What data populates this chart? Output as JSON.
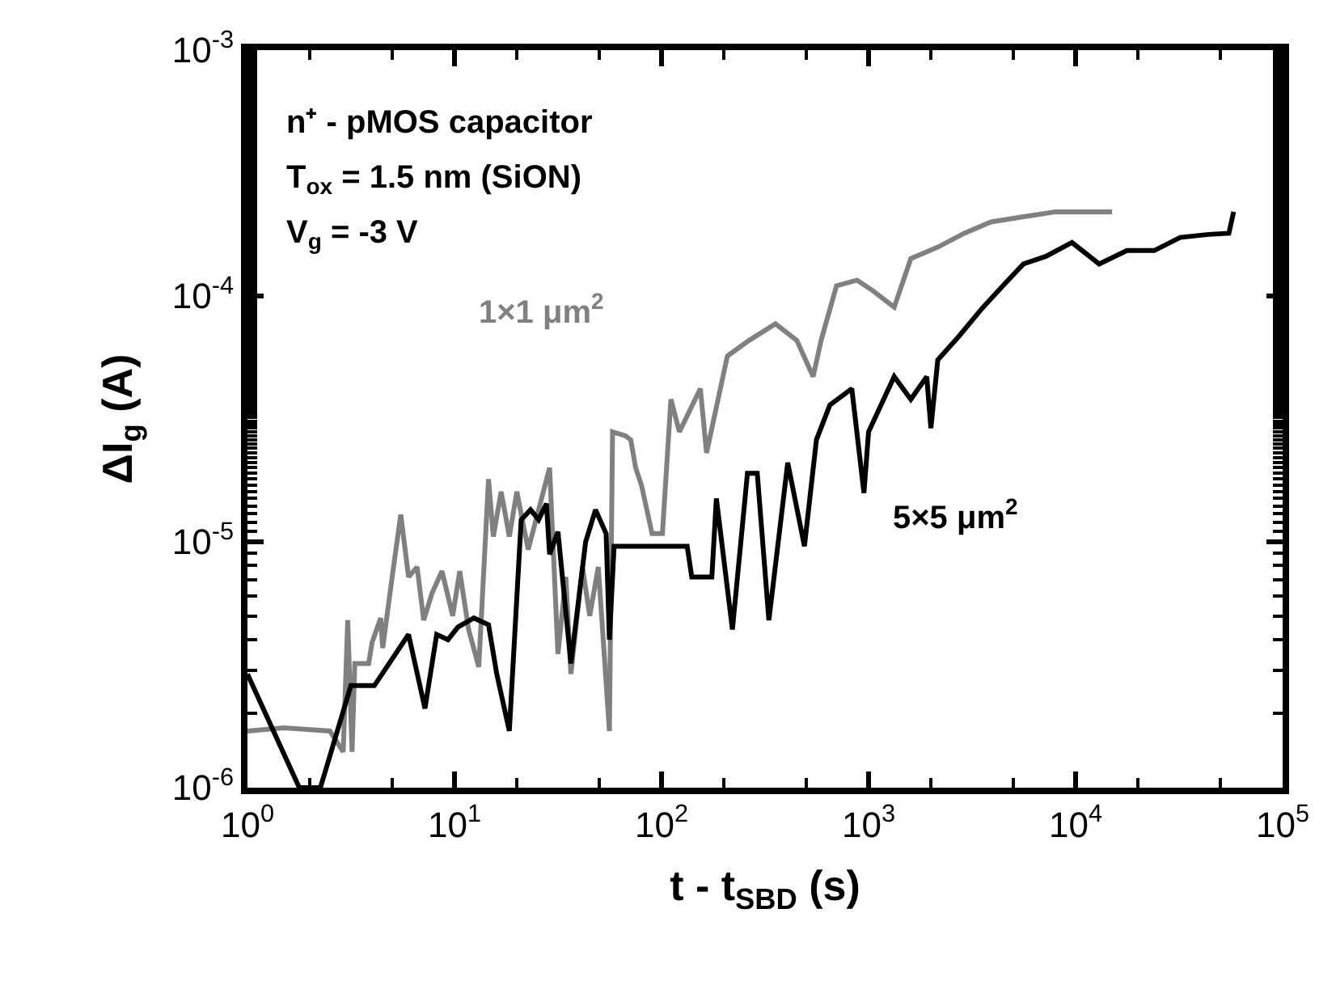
{
  "chart_data": {
    "type": "line",
    "xlabel": "t - t$_{SBD}$ (s)",
    "ylabel": "ΔI$_{g}$ (A)",
    "log": "xy",
    "grid": false,
    "legend": false,
    "marker": "none",
    "line_style": "solid",
    "xlim": [
      1,
      100000
    ],
    "ylim": [
      1e-06,
      0.001
    ],
    "xticks": [
      {
        "value": 1,
        "label": "10$^{0}$"
      },
      {
        "value": 10,
        "label": "10$^{1}$"
      },
      {
        "value": 100,
        "label": "10$^{2}$"
      },
      {
        "value": 1000,
        "label": "10$^{3}$"
      },
      {
        "value": 10000,
        "label": "10$^{4}$"
      },
      {
        "value": 100000,
        "label": "10$^{5}$"
      }
    ],
    "yticks": [
      {
        "value": 1e-06,
        "label": "10$^{-6}$"
      },
      {
        "value": 1e-05,
        "label": "10$^{-5}$"
      },
      {
        "value": 0.0001,
        "label": "10$^{-4}$"
      },
      {
        "value": 0.001,
        "label": "10$^{-3}$"
      }
    ],
    "annotations": [
      "n⁺ - pMOS capacitor",
      "T$_{ox}$ = 1.5 nm (SiON)",
      "V$_{g}$ = -3 V"
    ],
    "series": [
      {
        "name": "1×1 μm$^{2}$",
        "color": "#808080",
        "x": [
          1,
          1.5,
          2.5,
          2.9,
          3.05,
          3.2,
          3.3,
          3.85,
          4.0,
          4.4,
          4.5,
          5.0,
          5.5,
          6.0,
          6.6,
          7.1,
          7.8,
          8.7,
          9.8,
          10.6,
          11.7,
          13.1,
          14.6,
          15.4,
          16.8,
          18.4,
          20,
          22.7,
          28.8,
          31.6,
          34.5,
          36.5,
          41.5,
          45,
          49.5,
          56,
          58,
          67,
          71,
          75,
          80,
          90,
          101,
          111,
          122,
          154,
          165,
          208,
          265,
          355,
          450,
          540,
          590,
          700,
          880,
          1050,
          1330,
          1600,
          2160,
          2900,
          3900,
          5600,
          8000,
          11000,
          15000
        ],
        "values": [
          1.7e-06,
          1.75e-06,
          1.7e-06,
          1.4e-06,
          4.8e-06,
          1.4e-06,
          3.2e-06,
          3.2e-06,
          3.9e-06,
          4.9e-06,
          3.7e-06,
          7.2e-06,
          1.29e-05,
          7.2e-06,
          7.9e-06,
          4.8e-06,
          6.2e-06,
          7.6e-06,
          5e-06,
          7.6e-06,
          4.4e-06,
          3.1e-06,
          1.8e-05,
          1.05e-05,
          1.6e-05,
          1.05e-05,
          1.6e-05,
          9.3e-06,
          2e-05,
          3.5e-06,
          7.2e-06,
          2.9e-06,
          7.9e-06,
          5e-06,
          7.9e-06,
          1.7e-06,
          2.8e-05,
          2.7e-05,
          2.6e-05,
          2e-05,
          1.7e-05,
          1.08e-05,
          1.08e-05,
          3.8e-05,
          2.8e-05,
          4.2e-05,
          2.3e-05,
          5.7e-05,
          6.6e-05,
          7.7e-05,
          6.6e-05,
          4.7e-05,
          6.6e-05,
          0.00011,
          0.000116,
          0.000105,
          9e-05,
          0.000142,
          0.000158,
          0.00018,
          0.0002,
          0.00021,
          0.00022,
          0.00022,
          0.00022
        ]
      },
      {
        "name": "5×5 μm$^{2}$",
        "color": "#000000",
        "x": [
          1,
          1.78,
          2.25,
          3.16,
          4.1,
          6.0,
          7.2,
          8.2,
          9.3,
          10.4,
          12.4,
          14.6,
          16,
          18.4,
          21,
          23.3,
          25.5,
          27.8,
          28.8,
          31.6,
          36.5,
          43,
          48,
          54,
          56,
          59,
          133,
          140,
          175,
          184,
          220,
          260,
          290,
          330,
          407,
          490,
          560,
          650,
          830,
          950,
          1000,
          1330,
          1600,
          1910,
          2000,
          2160,
          2750,
          3530,
          4450,
          5600,
          7200,
          9600,
          13000,
          17700,
          24000,
          32000,
          44000,
          55000,
          58000
        ],
        "values": [
          2.9e-06,
          1e-06,
          1e-06,
          2.6e-06,
          2.6e-06,
          4.2e-06,
          2.1e-06,
          4.2e-06,
          4e-06,
          4.5e-06,
          4.9e-06,
          4.6e-06,
          2.9e-06,
          1.7e-06,
          1.23e-05,
          1.35e-05,
          1.23e-05,
          1.43e-05,
          8.9e-06,
          1.1e-05,
          3.2e-06,
          1e-05,
          1.35e-05,
          1.08e-05,
          4e-06,
          9.6e-06,
          9.6e-06,
          7.2e-06,
          7.2e-06,
          1.5e-05,
          4.4e-06,
          1.9e-05,
          1.9e-05,
          4.8e-06,
          2.1e-05,
          9.6e-06,
          2.6e-05,
          3.6e-05,
          4.2e-05,
          1.58e-05,
          2.8e-05,
          4.7e-05,
          3.8e-05,
          4.7e-05,
          2.9e-05,
          5.5e-05,
          6.9e-05,
          8.9e-05,
          0.00011,
          0.000135,
          0.000145,
          0.000165,
          0.000135,
          0.000153,
          0.000153,
          0.000173,
          0.000178,
          0.00018,
          0.00022
        ]
      }
    ]
  }
}
